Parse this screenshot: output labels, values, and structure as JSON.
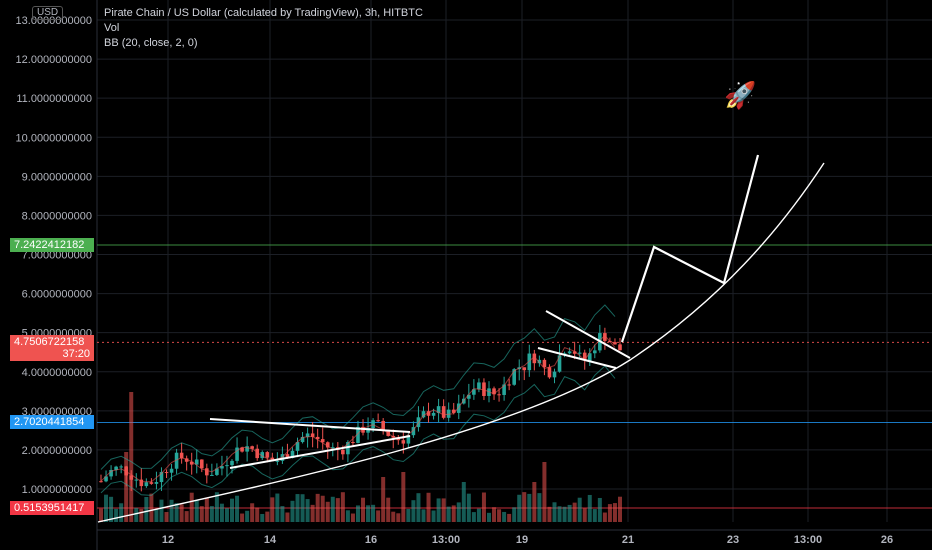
{
  "chart_data": {
    "type": "candlestick",
    "title": "Pirate Chain / US Dollar (calculated by TradingView), 3h, HITBTC",
    "indicators": [
      "Vol",
      "BB (20, close, 2, 0)"
    ],
    "currency": "USD",
    "y_ticks": [
      "1.0000000000",
      "2.0000000000",
      "3.0000000000",
      "4.0000000000",
      "5.0000000000",
      "6.0000000000",
      "7.0000000000",
      "8.0000000000",
      "9.0000000000",
      "10.0000000000",
      "11.0000000000",
      "12.0000000000",
      "13.0000000000"
    ],
    "y_tick_values": [
      1,
      2,
      3,
      4,
      5,
      6,
      7,
      8,
      9,
      10,
      11,
      12,
      13
    ],
    "ylim": [
      -0.6,
      13.2
    ],
    "x_ticks": [
      "12",
      "14",
      "16",
      "13:00",
      "19",
      "21",
      "23",
      "13:00",
      "26"
    ],
    "x_tick_positions": [
      0,
      1,
      2,
      3,
      4,
      5,
      6,
      7,
      8
    ],
    "price_levels": [
      {
        "label": "7.2422412182",
        "value": 7.2422412182,
        "color": "#4caf50"
      },
      {
        "label": "4.7506722158",
        "sub": "37:20",
        "value": 4.7506722158,
        "color": "#ef5350"
      },
      {
        "label": "2.7020441854",
        "value": 2.7020441854,
        "color": "#2196f3"
      },
      {
        "label": "0.5153951417",
        "value": 0.5153951417,
        "color": "#f23645"
      }
    ],
    "colors": {
      "up": "#26a69a",
      "down": "#ef5350",
      "grid": "#1c1f26",
      "annot": "#ffffff"
    }
  }
}
